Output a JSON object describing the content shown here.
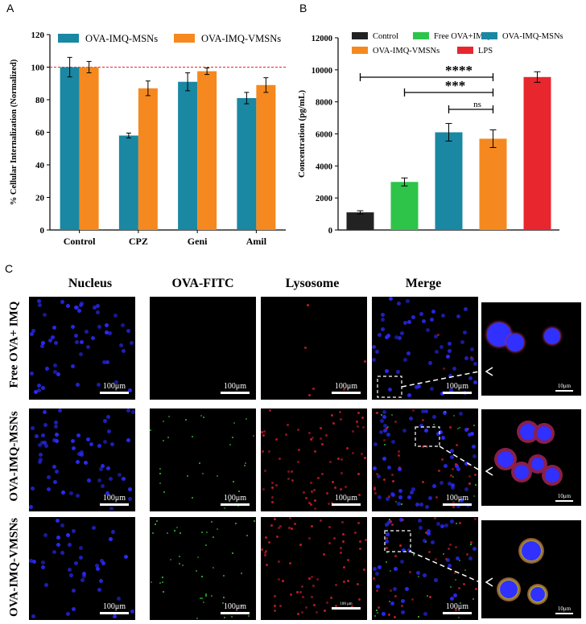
{
  "panel_labels": {
    "a": "A",
    "b": "B",
    "c": "C"
  },
  "chart_data": [
    {
      "type": "bar",
      "ylabel": "% Cellular Internalization (Normalized)",
      "categories": [
        "Control",
        "CPZ",
        "Geni",
        "Amil"
      ],
      "yticks": [
        "0",
        "20",
        "40",
        "60",
        "80",
        "100",
        "120"
      ],
      "ylim": [
        0,
        120
      ],
      "reference_line": 100,
      "series": [
        {
          "name": "OVA-IMQ-MSNs",
          "color": "#1a87a3",
          "values": [
            100,
            58,
            91,
            81
          ],
          "errors": [
            6,
            1.5,
            5.5,
            3.5
          ]
        },
        {
          "name": "OVA-IMQ-VMSNs",
          "color": "#f5891f",
          "values": [
            100,
            87,
            97.5,
            89
          ],
          "errors": [
            3.5,
            4.5,
            2,
            4.5
          ]
        }
      ]
    },
    {
      "type": "bar",
      "ylabel": "Concentration (pg/mL)",
      "ylim": [
        0,
        12000
      ],
      "yticks": [
        "0",
        "2000",
        "4000",
        "6000",
        "8000",
        "10000",
        "12000"
      ],
      "categories": [
        "Control",
        "Free OVA+IMQ",
        "OVA-IMQ-MSNs",
        "OVA-IMQ-VMSNs",
        "LPS"
      ],
      "values": [
        1100,
        3000,
        6100,
        5700,
        9550
      ],
      "errors": [
        100,
        250,
        550,
        550,
        330
      ],
      "colors": [
        "#222222",
        "#2ec44a",
        "#1a87a3",
        "#f5891f",
        "#e8262d"
      ],
      "significance": [
        {
          "label": "****",
          "from": "Free OVA+IMQ",
          "to": "OVA-IMQ-VMSNs",
          "start": "Control"
        },
        {
          "label": "***",
          "from": "Free OVA+IMQ",
          "to": "OVA-IMQ-VMSNs"
        },
        {
          "label": "ns",
          "from": "OVA-IMQ-MSNs",
          "to": "OVA-IMQ-VMSNs"
        }
      ]
    }
  ],
  "micrographs": {
    "columns": [
      "Nucleus",
      "OVA-FITC",
      "Lysosome",
      "Merge"
    ],
    "rows": [
      "Free OVA+ IMQ",
      "OVA-IMQ-MSNs",
      "OVA-IMQ-VMSNs"
    ],
    "scale_bar": "100μm",
    "scale_bar_small": "100 μm",
    "zoom_scale_bar": "10μm"
  }
}
